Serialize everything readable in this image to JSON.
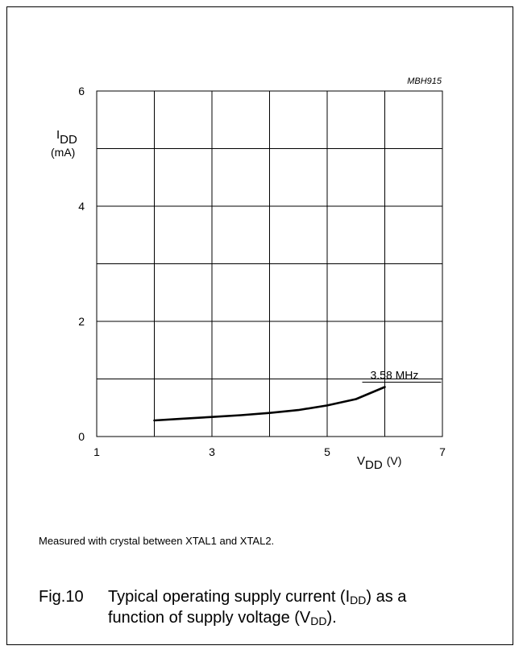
{
  "chart_data": {
    "type": "line",
    "id_label": "MBH915",
    "ylabel_main": "I",
    "ylabel_sub": "DD",
    "ylabel_unit": "(mA)",
    "xlabel_main": "V",
    "xlabel_sub": "DD",
    "xlabel_unit": "(V)",
    "xlim": [
      1,
      7
    ],
    "ylim": [
      0,
      6
    ],
    "x_ticks": [
      1,
      3,
      5,
      7
    ],
    "y_ticks": [
      0,
      2,
      4,
      6
    ],
    "x_grid_step": 1,
    "y_grid_step": 1,
    "grid": true,
    "series": [
      {
        "name": "3.58 MHz",
        "x": [
          2.0,
          2.5,
          3.0,
          3.5,
          4.0,
          4.5,
          5.0,
          5.5,
          6.0
        ],
        "y": [
          0.28,
          0.31,
          0.34,
          0.37,
          0.41,
          0.46,
          0.54,
          0.65,
          0.86
        ]
      }
    ]
  },
  "note": "Measured with crystal between XTAL1 and XTAL2.",
  "caption": {
    "fig": "Fig.10",
    "line1_a": "Typical operating supply current (I",
    "line1_sub": "DD",
    "line1_b": ") as a",
    "line2_a": "function of supply voltage (V",
    "line2_sub": "DD",
    "line2_b": ")."
  }
}
